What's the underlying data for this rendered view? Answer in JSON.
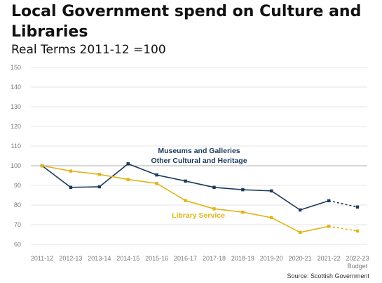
{
  "title": "Local Government spend on Culture and Libraries",
  "subtitle": "Real Terms 2011-12 =100",
  "source": "Source: Scottish Government",
  "colors": {
    "museums": "#1b3a5c",
    "library": "#e0b416",
    "grid": "#e6e6e6",
    "baseline": "#bdbdbd"
  },
  "chart_data": {
    "type": "line",
    "categories": [
      "2011-12",
      "2012-13",
      "2013-14",
      "2014-15",
      "2015-16",
      "2016-17",
      "2017-18",
      "2018-19",
      "2019-20",
      "2020-21",
      "2021-22",
      "2022-23"
    ],
    "category_sublabels": [
      "",
      "",
      "",
      "",
      "",
      "",
      "",
      "",
      "",
      "",
      "",
      "Budget"
    ],
    "yticks": [
      60,
      70,
      80,
      90,
      100,
      110,
      120,
      130,
      140,
      150
    ],
    "ylim": [
      60,
      150
    ],
    "grid": true,
    "series": [
      {
        "name": "Museums and Galleries Other Cultural and Heritage",
        "label_lines": [
          "Museums and Galleries",
          "Other Cultural and Heritage"
        ],
        "values": [
          100,
          89,
          89.3,
          101,
          95.3,
          92.2,
          89,
          87.8,
          87.2,
          77.5,
          82.2,
          79
        ],
        "dashed_from_index": 10
      },
      {
        "name": "Library Service",
        "label_lines": [
          "Library Service"
        ],
        "values": [
          100,
          97.3,
          95.6,
          93,
          91,
          82.3,
          78.1,
          76.4,
          73.6,
          66.1,
          69.2,
          66.8
        ],
        "dashed_from_index": 10
      }
    ]
  }
}
